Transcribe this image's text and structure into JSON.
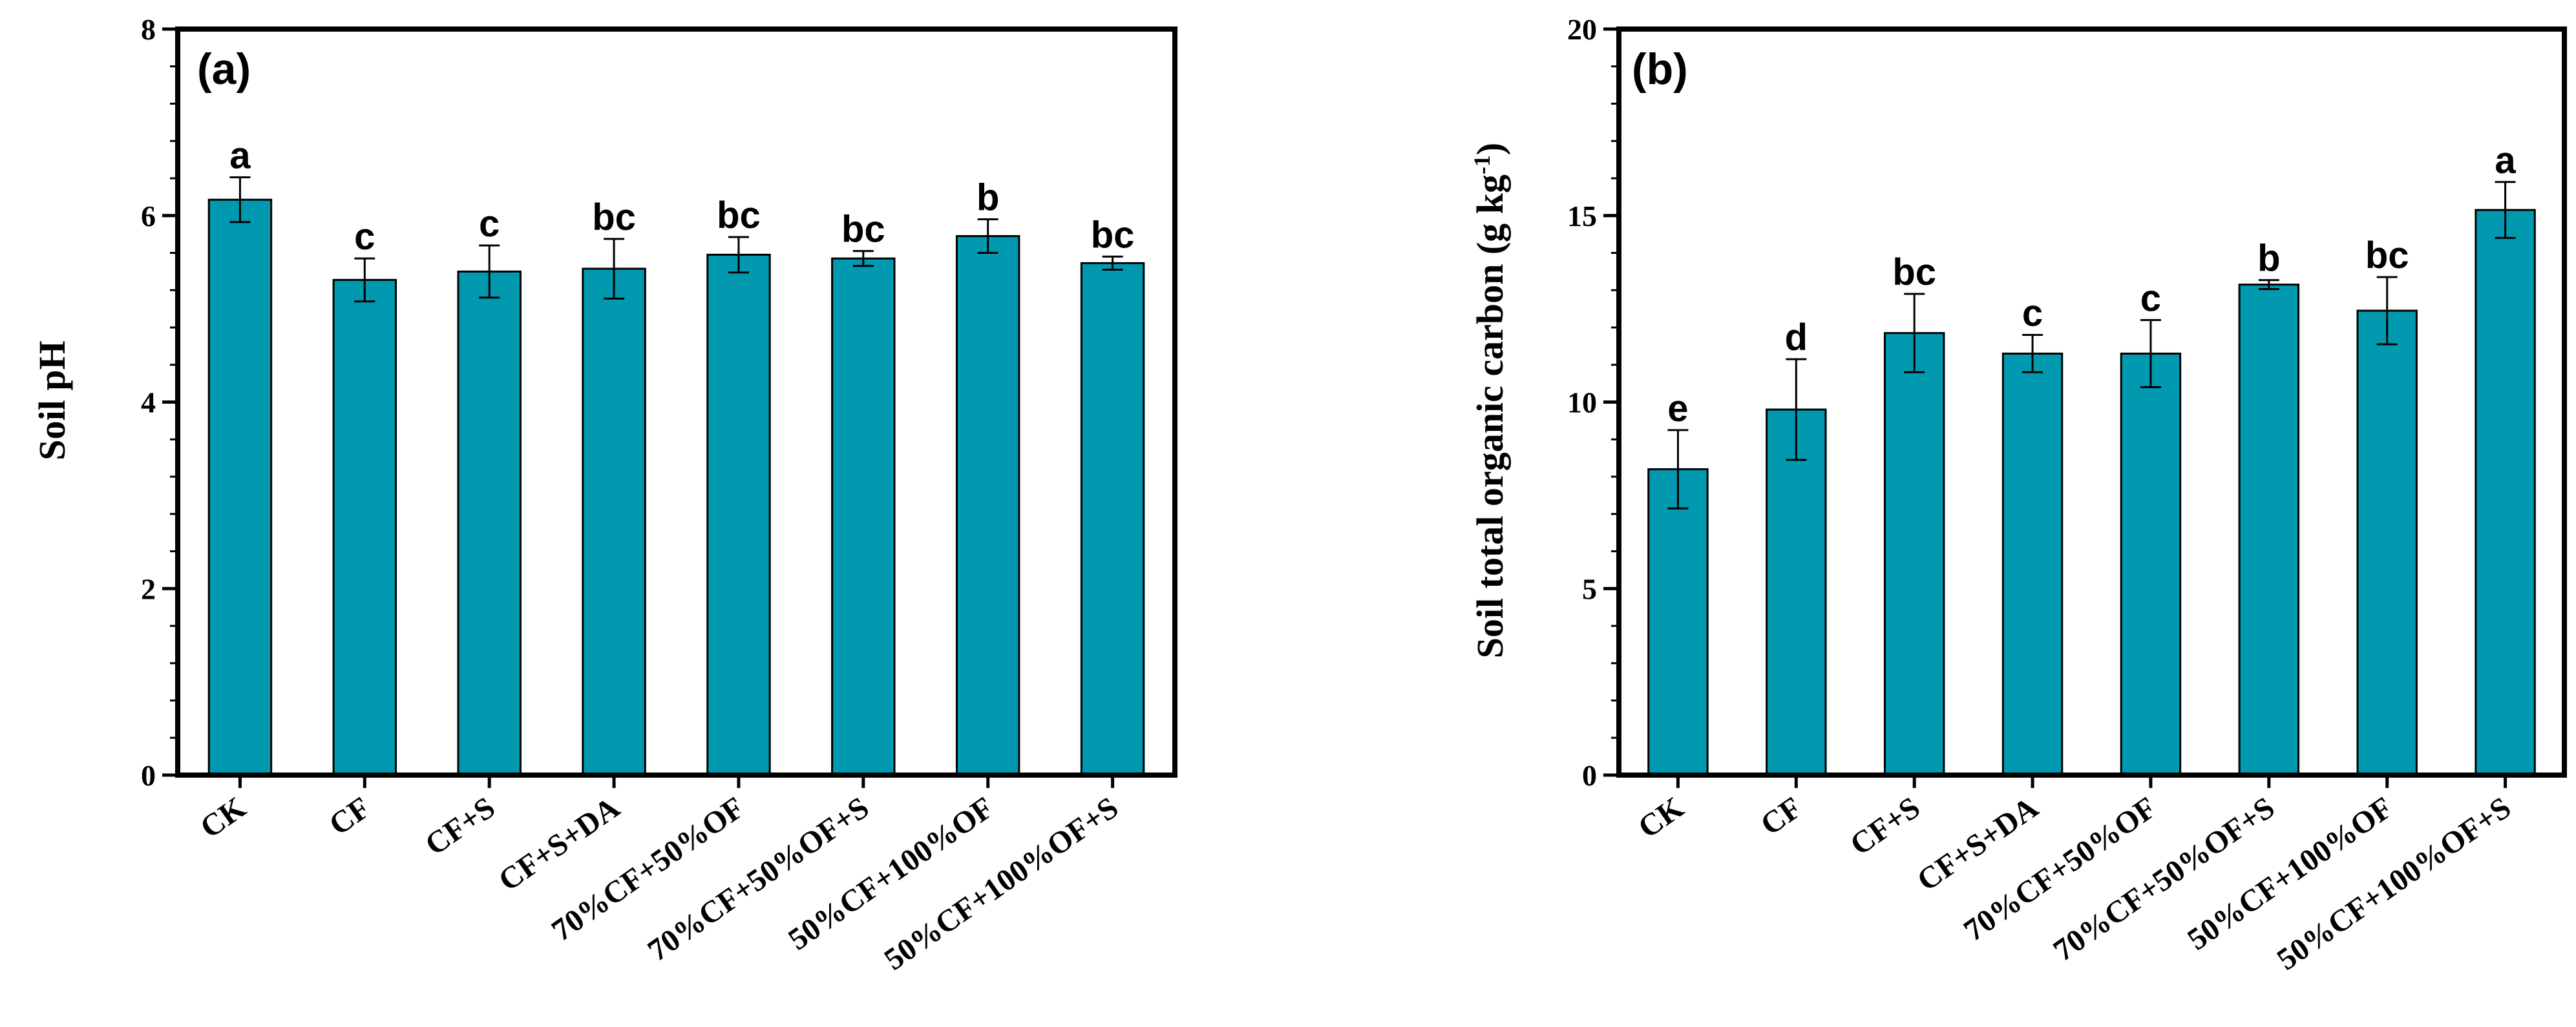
{
  "chart_data": [
    {
      "type": "bar",
      "panel_label": "(a)",
      "title": "",
      "xlabel": "",
      "ylabel": "Soil pH",
      "ylim": [
        0,
        8
      ],
      "yticks": [
        "0",
        "2",
        "4",
        "6",
        "8"
      ],
      "categories": [
        "CK",
        "CF",
        "CF+S",
        "CF+S+DA",
        "70%CF+50%OF",
        "70%CF+50%OF+S",
        "50%CF+100%OF",
        "50%CF+100%OF+S"
      ],
      "values": [
        6.17,
        5.31,
        5.4,
        5.43,
        5.58,
        5.54,
        5.78,
        5.49
      ],
      "errors": [
        0.24,
        0.23,
        0.28,
        0.32,
        0.19,
        0.08,
        0.18,
        0.07
      ],
      "significance": [
        "a",
        "c",
        "c",
        "bc",
        "bc",
        "bc",
        "b",
        "bc"
      ],
      "bar_color": "#0099B0"
    },
    {
      "type": "bar",
      "panel_label": "(b)",
      "title": "",
      "xlabel": "",
      "ylabel": "Soil total organic carbon (g kg",
      "ylabel_superscript": "-1",
      "ylabel_suffix": ")",
      "ylim": [
        0,
        20
      ],
      "yticks": [
        "0",
        "5",
        "10",
        "15",
        "20"
      ],
      "categories": [
        "CK",
        "CF",
        "CF+S",
        "CF+S+DA",
        "70%CF+50%OF",
        "70%CF+50%OF+S",
        "50%CF+100%OF",
        "50%CF+100%OF+S"
      ],
      "values": [
        8.2,
        9.8,
        11.85,
        11.3,
        11.3,
        13.15,
        12.45,
        15.15
      ],
      "errors": [
        1.05,
        1.35,
        1.05,
        0.5,
        0.9,
        0.12,
        0.9,
        0.75
      ],
      "significance": [
        "e",
        "d",
        "bc",
        "c",
        "c",
        "b",
        "bc",
        "a"
      ],
      "bar_color": "#0099B0"
    }
  ]
}
